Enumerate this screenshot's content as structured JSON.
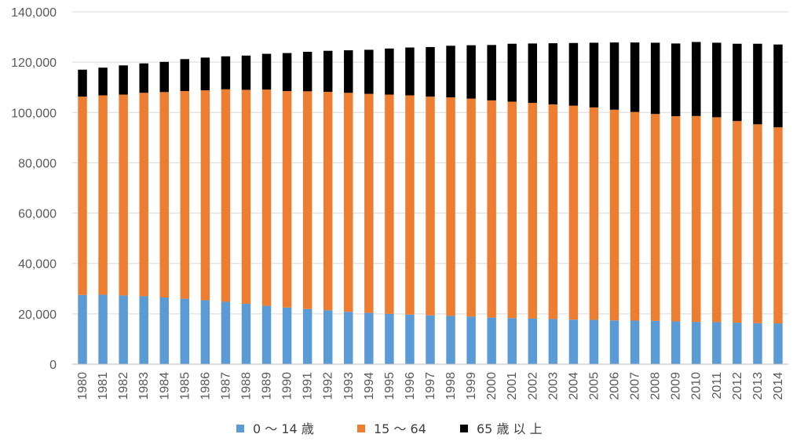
{
  "chart_data": {
    "type": "bar",
    "stacked": true,
    "title": "",
    "xlabel": "",
    "ylabel": "",
    "ylim": [
      0,
      140000
    ],
    "yticks": [
      "0",
      "20,000",
      "40,000",
      "60,000",
      "80,000",
      "100,000",
      "120,000",
      "140,000"
    ],
    "grid": true,
    "legend_position": "bottom",
    "categories": [
      "1980",
      "1981",
      "1982",
      "1983",
      "1984",
      "1985",
      "1986",
      "1987",
      "1988",
      "1989",
      "1990",
      "1991",
      "1992",
      "1993",
      "1994",
      "1995",
      "1996",
      "1997",
      "1998",
      "1999",
      "2000",
      "2001",
      "2002",
      "2003",
      "2004",
      "2005",
      "2006",
      "2007",
      "2008",
      "2009",
      "2010",
      "2011",
      "2012",
      "2013",
      "2014"
    ],
    "series": [
      {
        "name": "0 ～ 14 歳",
        "color": "#5B9BD5",
        "values": [
          27500,
          27600,
          27300,
          27000,
          26500,
          26000,
          25400,
          24800,
          24000,
          23200,
          22500,
          21900,
          21400,
          20800,
          20400,
          20000,
          19700,
          19400,
          19200,
          18900,
          18500,
          18300,
          18100,
          17900,
          17700,
          17600,
          17400,
          17300,
          17200,
          17000,
          16800,
          16700,
          16500,
          16300,
          16200
        ]
      },
      {
        "name": "15 ～ 64",
        "color": "#ED7D31",
        "values": [
          78800,
          79200,
          79800,
          80800,
          81600,
          82500,
          83400,
          84400,
          85000,
          85900,
          86000,
          86500,
          86800,
          87000,
          87000,
          87100,
          87100,
          86900,
          86800,
          86600,
          86300,
          86000,
          85700,
          85300,
          85000,
          84400,
          83700,
          82900,
          82200,
          81500,
          81800,
          81400,
          80100,
          79000,
          77900
        ]
      },
      {
        "name": "65 歳 以 上",
        "color": "#000000",
        "values": [
          10700,
          11000,
          11600,
          11700,
          12000,
          12700,
          13000,
          13100,
          13600,
          14200,
          15100,
          15700,
          16300,
          16900,
          17500,
          18300,
          19000,
          19700,
          20500,
          21200,
          22000,
          23000,
          23600,
          24300,
          24900,
          25700,
          26700,
          27600,
          28300,
          28900,
          29400,
          29600,
          30700,
          32000,
          32900
        ]
      }
    ]
  }
}
